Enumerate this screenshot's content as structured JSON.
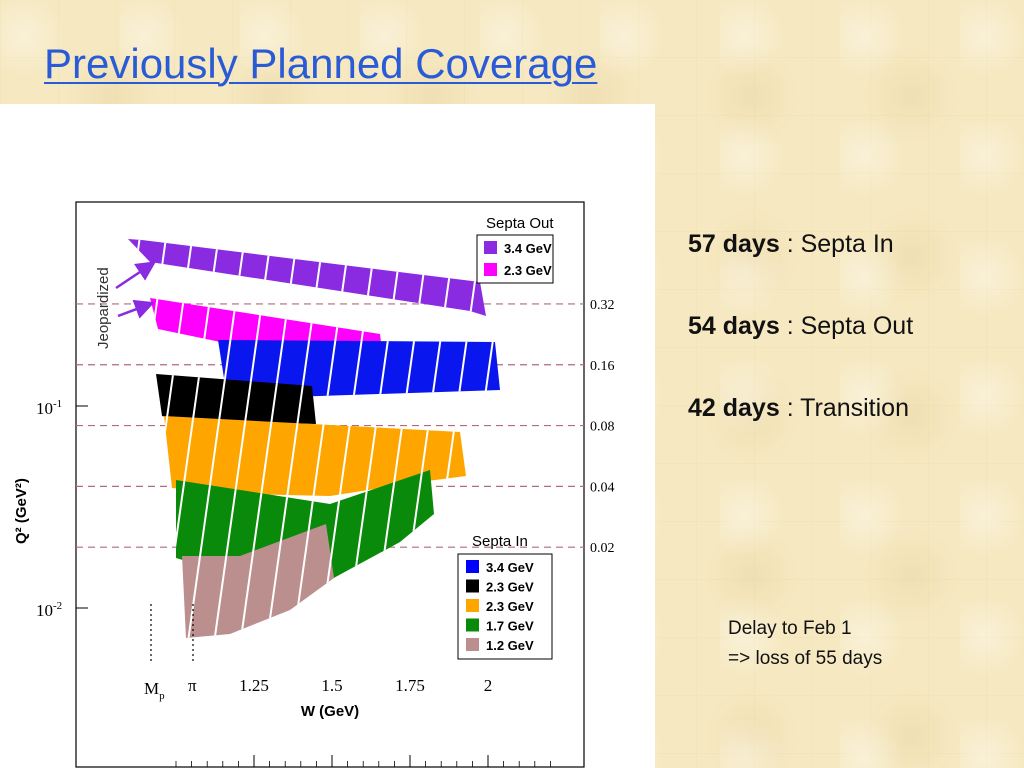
{
  "slide": {
    "title": "Previously Planned Coverage"
  },
  "chart_data": {
    "type": "scatter",
    "xlabel": "W (GeV)",
    "ylabel": "Q² (GeV²)",
    "xticks": [
      1.25,
      1.5,
      1.75,
      2
    ],
    "xtick_labels": [
      "1.25",
      "1.5",
      "1.75",
      "2"
    ],
    "special_x_marks": [
      {
        "label": "M",
        "sub": "p",
        "x": 0.938
      },
      {
        "label": "π",
        "x": 1.078
      }
    ],
    "ylog": true,
    "ytick_labels": [
      {
        "base": "10",
        "exp": "-1",
        "value": 0.1
      },
      {
        "base": "10",
        "exp": "-2",
        "value": 0.01
      }
    ],
    "q2_lines": [
      {
        "value": 0.32,
        "label": "0.32"
      },
      {
        "value": 0.16,
        "label": "0.16"
      },
      {
        "value": 0.08,
        "label": "0.08"
      },
      {
        "value": 0.04,
        "label": "0.04"
      },
      {
        "value": 0.02,
        "label": "0.02"
      }
    ],
    "jeopardized_label": "Jeopardized",
    "legend_out": {
      "title": "Septa Out",
      "items": [
        {
          "label": "3.4 GeV",
          "color": "#8a2be2"
        },
        {
          "label": "2.3 GeV",
          "color": "#ff00ff"
        }
      ]
    },
    "legend_in": {
      "title": "Septa In",
      "items": [
        {
          "label": "3.4 GeV",
          "color": "#0000ff"
        },
        {
          "label": "2.3 GeV",
          "color": "#000000"
        },
        {
          "label": "2.3 GeV",
          "color": "#ffa500"
        },
        {
          "label": "1.7 GeV",
          "color": "#0a8a0a"
        },
        {
          "label": "1.2 GeV",
          "color": "#bc8f8f"
        }
      ]
    }
  },
  "notes": [
    {
      "bold": "57 days",
      "rest": " : Septa In"
    },
    {
      "bold": "54 days",
      "rest": " : Septa Out"
    },
    {
      "bold": "42 days",
      "rest": " : Transition"
    }
  ],
  "delay": {
    "line1": "Delay to Feb 1",
    "line2": "=> loss of 55 days"
  }
}
